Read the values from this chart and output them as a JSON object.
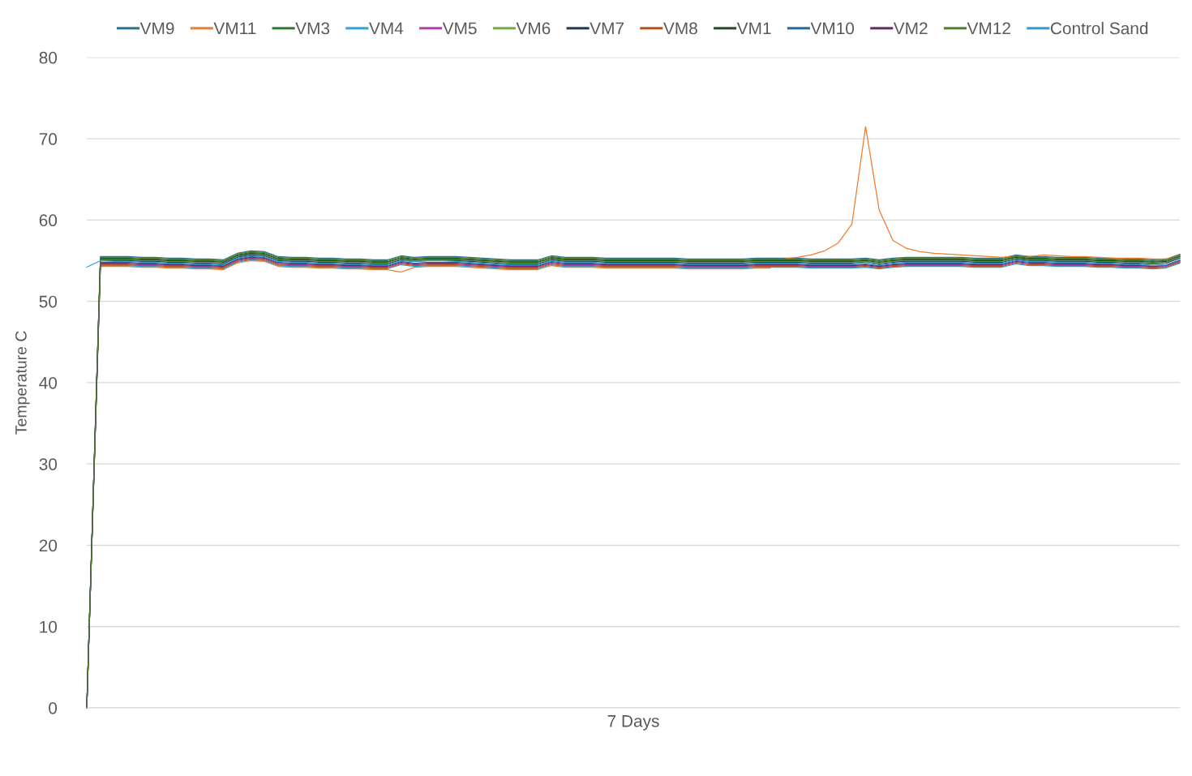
{
  "chart_data": {
    "type": "line",
    "xlabel": "7 Days",
    "ylabel": "Temperature C",
    "categories": [
      null,
      null,
      null,
      null,
      null,
      null,
      null,
      null,
      null,
      null,
      null,
      null,
      null,
      null,
      null,
      null,
      null,
      null,
      null,
      null,
      null,
      null,
      null,
      null,
      null,
      null,
      null,
      null,
      null,
      null,
      null,
      null,
      null,
      null,
      null,
      null,
      null,
      null,
      null,
      null,
      null,
      null,
      null,
      null,
      null,
      null,
      null,
      null,
      null,
      null,
      null,
      null,
      null,
      null,
      null,
      null,
      null,
      null,
      null,
      null,
      null,
      null,
      null,
      null,
      null,
      null,
      null,
      null,
      null,
      null,
      null,
      null,
      null,
      null,
      null,
      null,
      null,
      null,
      null,
      null,
      null
    ],
    "ylim": [
      0,
      80
    ],
    "yticks": [
      0,
      10,
      20,
      30,
      40,
      50,
      60,
      70,
      80
    ],
    "grid": "y",
    "legend": "top",
    "tick_labels": "y",
    "marker": "none",
    "line_style": "solid",
    "series": [
      {
        "name": "VM9",
        "color": "#2e6f95",
        "values": [
          0,
          55.5,
          55.5,
          55.5,
          55.4,
          55.4,
          55.3,
          55.3,
          55.2,
          55.2,
          55.1,
          55.9,
          56.2,
          56.1,
          55.5,
          55.4,
          55.4,
          55.3,
          55.3,
          55.2,
          55.2,
          55.1,
          55.1,
          55.6,
          55.4,
          55.5,
          55.5,
          55.5,
          55.4,
          55.3,
          55.2,
          55.1,
          55.1,
          55.1,
          55.6,
          55.4,
          55.4,
          55.4,
          55.3,
          55.3,
          55.3,
          55.3,
          55.3,
          55.3,
          55.2,
          55.2,
          55.2,
          55.2,
          55.2,
          55.3,
          55.3,
          55.3,
          55.3,
          55.2,
          55.2,
          55.2,
          55.2,
          55.3,
          55.1,
          55.3,
          55.4,
          55.4,
          55.4,
          55.4,
          55.4,
          55.3,
          55.3,
          55.3,
          55.7,
          55.5,
          55.5,
          55.4,
          55.4,
          55.4,
          55.3,
          55.3,
          55.2,
          55.2,
          55.1,
          55.2,
          55.8
        ]
      },
      {
        "name": "VM11",
        "color": "#ed7d31",
        "values": [
          null,
          54.3,
          54.3,
          54.3,
          54.2,
          54.2,
          54.1,
          54.1,
          54.0,
          54.0,
          53.9,
          54.7,
          55.0,
          54.9,
          54.3,
          54.2,
          54.2,
          54.1,
          54.1,
          54.0,
          54.0,
          53.9,
          53.9,
          53.6,
          54.2,
          54.3,
          54.3,
          54.3,
          54.2,
          54.1,
          54.0,
          53.9,
          53.9,
          53.9,
          54.4,
          54.2,
          54.2,
          54.2,
          54.1,
          54.1,
          54.1,
          54.1,
          54.1,
          54.1,
          54.0,
          54.0,
          54.0,
          54.0,
          54.0,
          54.1,
          54.1,
          55.2,
          55.4,
          55.7,
          56.2,
          57.2,
          59.5,
          71.5,
          61.2,
          57.5,
          56.5,
          56.1,
          55.9,
          55.8,
          55.7,
          55.6,
          55.5,
          55.4,
          55.6,
          55.5,
          55.7,
          55.6,
          55.5,
          55.5,
          55.4,
          55.3,
          55.3,
          55.3,
          55.2,
          55.2,
          55.7
        ]
      },
      {
        "name": "VM3",
        "color": "#2f7a2f",
        "values": [
          0,
          55.3,
          55.3,
          55.3,
          55.2,
          55.2,
          55.1,
          55.1,
          55.0,
          55.0,
          54.9,
          55.7,
          56.0,
          55.9,
          55.3,
          55.2,
          55.2,
          55.1,
          55.1,
          55.0,
          55.0,
          54.9,
          54.9,
          55.4,
          55.2,
          55.3,
          55.3,
          55.3,
          55.2,
          55.1,
          55.0,
          54.9,
          54.9,
          54.9,
          55.4,
          55.2,
          55.2,
          55.2,
          55.1,
          55.1,
          55.1,
          55.1,
          55.1,
          55.1,
          55.0,
          55.0,
          55.0,
          55.0,
          55.0,
          55.1,
          55.1,
          55.1,
          55.1,
          55.0,
          55.0,
          55.0,
          55.0,
          55.1,
          54.9,
          55.1,
          55.2,
          55.2,
          55.2,
          55.2,
          55.2,
          55.1,
          55.1,
          55.1,
          55.5,
          55.3,
          55.3,
          55.2,
          55.2,
          55.2,
          55.1,
          55.1,
          55.0,
          55.0,
          54.9,
          55.0,
          55.6
        ]
      },
      {
        "name": "VM4",
        "color": "#29a8e0",
        "values": [
          null,
          54.4,
          54.4,
          54.4,
          54.3,
          54.3,
          54.2,
          54.2,
          54.1,
          54.1,
          54.0,
          54.8,
          55.1,
          55.0,
          54.4,
          54.3,
          54.3,
          54.2,
          54.2,
          54.1,
          54.1,
          54.0,
          54.0,
          54.5,
          54.3,
          54.4,
          54.4,
          54.4,
          54.3,
          54.2,
          54.1,
          54.0,
          54.0,
          54.0,
          54.5,
          54.3,
          54.3,
          54.3,
          54.2,
          54.2,
          54.2,
          54.2,
          54.2,
          54.2,
          54.1,
          54.1,
          54.1,
          54.1,
          54.1,
          54.2,
          54.2,
          54.2,
          54.2,
          54.1,
          54.1,
          54.1,
          54.1,
          54.2,
          54.0,
          54.2,
          54.3,
          54.3,
          54.3,
          54.3,
          54.3,
          54.2,
          54.2,
          54.2,
          54.6,
          54.4,
          54.4,
          54.3,
          54.3,
          54.3,
          54.2,
          54.2,
          54.1,
          54.1,
          54.0,
          54.1,
          54.7
        ]
      },
      {
        "name": "VM5",
        "color": "#b040b0",
        "values": [
          null,
          54.6,
          54.6,
          54.6,
          54.5,
          54.5,
          54.4,
          54.4,
          54.3,
          54.3,
          54.2,
          55.0,
          55.3,
          55.2,
          54.6,
          54.5,
          54.5,
          54.4,
          54.4,
          54.3,
          54.3,
          54.2,
          54.2,
          54.7,
          54.5,
          54.6,
          54.6,
          54.6,
          54.5,
          54.4,
          54.3,
          54.2,
          54.2,
          54.2,
          54.7,
          54.5,
          54.5,
          54.5,
          54.4,
          54.4,
          54.4,
          54.4,
          54.4,
          54.4,
          54.3,
          54.3,
          54.3,
          54.3,
          54.3,
          54.4,
          54.4,
          54.4,
          54.4,
          54.3,
          54.3,
          54.3,
          54.3,
          54.4,
          54.2,
          54.4,
          54.5,
          54.5,
          54.5,
          54.5,
          54.5,
          54.4,
          54.4,
          54.4,
          54.8,
          54.6,
          54.6,
          54.5,
          54.5,
          54.5,
          54.4,
          54.4,
          54.3,
          54.3,
          54.2,
          54.3,
          54.9
        ]
      },
      {
        "name": "VM6",
        "color": "#70ad47",
        "values": [
          0,
          55.1,
          55.1,
          55.1,
          55.0,
          55.0,
          54.9,
          54.9,
          54.8,
          54.8,
          54.7,
          55.5,
          55.8,
          55.7,
          55.1,
          55.0,
          55.0,
          54.9,
          54.9,
          54.8,
          54.8,
          54.7,
          54.7,
          55.2,
          55.0,
          55.1,
          55.1,
          55.1,
          55.0,
          54.9,
          54.8,
          54.7,
          54.7,
          54.7,
          55.2,
          55.0,
          55.0,
          55.0,
          54.9,
          54.9,
          54.9,
          54.9,
          54.9,
          54.9,
          54.8,
          54.8,
          54.8,
          54.8,
          54.8,
          54.9,
          54.9,
          54.9,
          54.9,
          54.8,
          54.8,
          54.8,
          54.8,
          54.9,
          54.7,
          54.9,
          55.0,
          55.0,
          55.0,
          55.0,
          55.0,
          54.9,
          54.9,
          54.9,
          55.3,
          55.1,
          55.1,
          55.0,
          55.0,
          55.0,
          54.9,
          54.9,
          54.8,
          54.8,
          54.7,
          54.8,
          55.4
        ]
      },
      {
        "name": "VM7",
        "color": "#203a50",
        "values": [
          0,
          55.0,
          55.0,
          55.0,
          54.9,
          54.9,
          54.8,
          54.8,
          54.7,
          54.7,
          54.6,
          55.4,
          55.7,
          55.6,
          55.0,
          54.9,
          54.9,
          54.8,
          54.8,
          54.7,
          54.7,
          54.6,
          54.6,
          55.1,
          54.9,
          55.0,
          55.0,
          55.0,
          54.9,
          54.8,
          54.7,
          54.6,
          54.6,
          54.6,
          55.1,
          54.9,
          54.9,
          54.9,
          54.8,
          54.8,
          54.8,
          54.8,
          54.8,
          54.8,
          54.7,
          54.7,
          54.7,
          54.7,
          54.7,
          54.8,
          54.8,
          54.8,
          54.8,
          54.7,
          54.7,
          54.7,
          54.7,
          54.8,
          54.6,
          54.8,
          54.9,
          54.9,
          54.9,
          54.9,
          54.9,
          54.8,
          54.8,
          54.8,
          55.2,
          55.0,
          55.0,
          54.9,
          54.9,
          54.9,
          54.8,
          54.8,
          54.7,
          54.7,
          54.6,
          54.7,
          55.3
        ]
      },
      {
        "name": "VM8",
        "color": "#b5531c",
        "values": [
          0,
          54.5,
          54.5,
          54.5,
          54.4,
          54.4,
          54.3,
          54.3,
          54.2,
          54.2,
          54.1,
          54.9,
          55.2,
          55.1,
          54.5,
          54.4,
          54.4,
          54.3,
          54.3,
          54.2,
          54.2,
          54.1,
          54.1,
          54.6,
          54.4,
          54.5,
          54.5,
          54.5,
          54.4,
          54.3,
          54.2,
          54.1,
          54.1,
          54.1,
          54.6,
          54.4,
          54.4,
          54.4,
          54.3,
          54.3,
          54.3,
          54.3,
          54.3,
          54.3,
          54.2,
          54.2,
          54.2,
          54.2,
          54.2,
          54.3,
          54.3,
          54.3,
          54.3,
          54.2,
          54.2,
          54.2,
          54.2,
          54.3,
          54.1,
          54.3,
          54.4,
          54.4,
          54.4,
          54.4,
          54.4,
          54.3,
          54.3,
          54.3,
          54.7,
          54.5,
          54.5,
          54.4,
          54.4,
          54.4,
          54.3,
          54.3,
          54.2,
          54.2,
          54.1,
          54.2,
          54.8
        ]
      },
      {
        "name": "VM1",
        "color": "#264d22",
        "values": [
          0,
          55.2,
          55.2,
          55.2,
          55.1,
          55.1,
          55.0,
          55.0,
          54.9,
          54.9,
          54.8,
          55.6,
          55.9,
          55.8,
          55.2,
          55.1,
          55.1,
          55.0,
          55.0,
          54.9,
          54.9,
          54.8,
          54.8,
          55.3,
          55.1,
          55.2,
          55.2,
          55.2,
          55.1,
          55.0,
          54.9,
          54.8,
          54.8,
          54.8,
          55.3,
          55.1,
          55.1,
          55.1,
          55.0,
          55.0,
          55.0,
          55.0,
          55.0,
          55.0,
          54.9,
          54.9,
          54.9,
          54.9,
          54.9,
          55.0,
          55.0,
          55.0,
          55.0,
          54.9,
          54.9,
          54.9,
          54.9,
          55.0,
          54.8,
          55.0,
          55.1,
          55.1,
          55.1,
          55.1,
          55.1,
          55.0,
          55.0,
          55.0,
          55.4,
          55.2,
          55.2,
          55.1,
          55.1,
          55.1,
          55.0,
          55.0,
          54.9,
          54.9,
          54.8,
          54.9,
          55.5
        ]
      },
      {
        "name": "VM10",
        "color": "#1f6e9c",
        "values": [
          0,
          54.8,
          54.8,
          54.8,
          54.7,
          54.7,
          54.6,
          54.6,
          54.5,
          54.5,
          54.4,
          55.2,
          55.5,
          55.4,
          54.8,
          54.7,
          54.7,
          54.6,
          54.6,
          54.5,
          54.5,
          54.4,
          54.4,
          54.9,
          54.7,
          54.8,
          54.8,
          54.8,
          54.7,
          54.6,
          54.5,
          54.4,
          54.4,
          54.4,
          54.9,
          54.7,
          54.7,
          54.7,
          54.6,
          54.6,
          54.6,
          54.6,
          54.6,
          54.6,
          54.5,
          54.5,
          54.5,
          54.5,
          54.5,
          54.6,
          54.6,
          54.6,
          54.6,
          54.5,
          54.5,
          54.5,
          54.5,
          54.6,
          54.4,
          54.6,
          54.7,
          54.7,
          54.7,
          54.7,
          54.7,
          54.6,
          54.6,
          54.6,
          55.0,
          54.8,
          54.8,
          54.7,
          54.7,
          54.7,
          54.6,
          54.6,
          54.5,
          54.5,
          54.4,
          54.5,
          55.1
        ]
      },
      {
        "name": "VM2",
        "color": "#6d2a68",
        "values": [
          0,
          54.7,
          54.7,
          54.7,
          54.6,
          54.6,
          54.5,
          54.5,
          54.4,
          54.4,
          54.3,
          55.1,
          55.4,
          55.3,
          54.7,
          54.6,
          54.6,
          54.5,
          54.5,
          54.4,
          54.4,
          54.3,
          54.3,
          54.8,
          54.6,
          54.7,
          54.7,
          54.7,
          54.6,
          54.5,
          54.4,
          54.3,
          54.3,
          54.3,
          54.8,
          54.6,
          54.6,
          54.6,
          54.5,
          54.5,
          54.5,
          54.5,
          54.5,
          54.5,
          54.4,
          54.4,
          54.4,
          54.4,
          54.4,
          54.5,
          54.5,
          54.5,
          54.5,
          54.4,
          54.4,
          54.4,
          54.4,
          54.5,
          54.3,
          54.5,
          54.6,
          54.6,
          54.6,
          54.6,
          54.6,
          54.5,
          54.5,
          54.5,
          54.9,
          54.7,
          54.7,
          54.6,
          54.6,
          54.6,
          54.5,
          54.5,
          54.4,
          54.4,
          54.3,
          54.4,
          55.0
        ]
      },
      {
        "name": "VM12",
        "color": "#4f7f2f",
        "values": [
          0,
          55.4,
          55.4,
          55.4,
          55.3,
          55.3,
          55.2,
          55.2,
          55.1,
          55.1,
          55.0,
          55.8,
          56.1,
          56.0,
          55.4,
          55.3,
          55.3,
          55.2,
          55.2,
          55.1,
          55.1,
          55.0,
          55.0,
          55.5,
          55.3,
          55.4,
          55.4,
          55.4,
          55.3,
          55.2,
          55.1,
          55.0,
          55.0,
          55.0,
          55.5,
          55.3,
          55.3,
          55.3,
          55.2,
          55.2,
          55.2,
          55.2,
          55.2,
          55.2,
          55.1,
          55.1,
          55.1,
          55.1,
          55.1,
          55.2,
          55.2,
          55.2,
          55.2,
          55.1,
          55.1,
          55.1,
          55.1,
          55.2,
          55.0,
          55.2,
          55.3,
          55.3,
          55.3,
          55.3,
          55.3,
          55.2,
          55.2,
          55.2,
          55.6,
          55.4,
          55.4,
          55.3,
          55.3,
          55.3,
          55.2,
          55.2,
          55.1,
          55.1,
          55.0,
          55.1,
          55.7
        ]
      },
      {
        "name": "Control Sand",
        "color": "#2e9bd6",
        "values": [
          54.2,
          55.0,
          54.9,
          54.9,
          54.8,
          54.8,
          54.7,
          54.7,
          54.6,
          54.6,
          54.5,
          55.3,
          55.6,
          55.5,
          54.9,
          54.8,
          54.8,
          54.7,
          54.7,
          54.6,
          54.6,
          54.5,
          54.5,
          55.0,
          54.9,
          55.0,
          55.0,
          54.9,
          54.8,
          54.7,
          54.6,
          54.5,
          54.5,
          54.5,
          55.0,
          54.8,
          54.8,
          54.8,
          54.7,
          54.7,
          54.7,
          54.7,
          54.7,
          54.7,
          54.6,
          54.6,
          54.6,
          54.6,
          54.6,
          54.7,
          54.7,
          54.7,
          54.7,
          54.6,
          54.6,
          54.6,
          54.6,
          54.8,
          54.5,
          54.7,
          54.8,
          54.8,
          54.8,
          54.8,
          54.8,
          54.7,
          54.7,
          54.7,
          55.1,
          54.9,
          54.9,
          54.8,
          54.8,
          54.8,
          54.7,
          54.7,
          54.6,
          54.6,
          54.4,
          54.5,
          55.1
        ]
      }
    ]
  }
}
